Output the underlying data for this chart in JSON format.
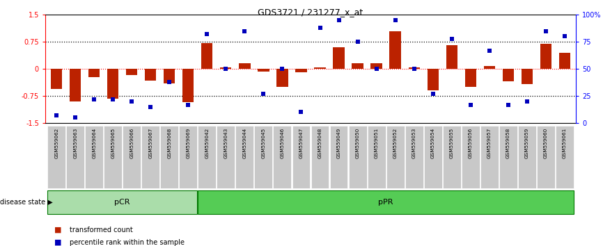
{
  "title": "GDS3721 / 231277_x_at",
  "samples": [
    "GSM559062",
    "GSM559063",
    "GSM559064",
    "GSM559065",
    "GSM559066",
    "GSM559067",
    "GSM559068",
    "GSM559069",
    "GSM559042",
    "GSM559043",
    "GSM559044",
    "GSM559045",
    "GSM559046",
    "GSM559047",
    "GSM559048",
    "GSM559049",
    "GSM559050",
    "GSM559051",
    "GSM559052",
    "GSM559053",
    "GSM559054",
    "GSM559055",
    "GSM559056",
    "GSM559057",
    "GSM559058",
    "GSM559059",
    "GSM559060",
    "GSM559061"
  ],
  "transformed_count": [
    -0.55,
    -0.9,
    -0.22,
    -0.82,
    -0.18,
    -0.32,
    -0.4,
    -0.92,
    0.72,
    0.05,
    0.15,
    -0.08,
    -0.5,
    -0.1,
    0.05,
    0.6,
    0.15,
    0.15,
    1.05,
    0.05,
    -0.6,
    0.65,
    -0.5,
    0.08,
    -0.35,
    -0.42,
    0.7,
    0.45
  ],
  "percentile_rank": [
    7,
    5,
    22,
    22,
    20,
    15,
    38,
    17,
    82,
    50,
    85,
    27,
    50,
    10,
    88,
    95,
    75,
    50,
    95,
    50,
    27,
    78,
    17,
    67,
    17,
    20,
    85,
    80
  ],
  "group_labels": [
    "pCR",
    "pPR"
  ],
  "group_ranges": [
    [
      0,
      8
    ],
    [
      8,
      28
    ]
  ],
  "group_colors": [
    "#aaddaa",
    "#55cc55"
  ],
  "ylim_left": [
    -1.5,
    1.5
  ],
  "yticks_left": [
    -1.5,
    -0.75,
    0.0,
    0.75,
    1.5
  ],
  "ytick_labels_left": [
    "-1.5",
    "-0.75",
    "0",
    "0.75",
    "1.5"
  ],
  "ytick_labels_right": [
    "0",
    "25",
    "50",
    "75",
    "100%"
  ],
  "bar_color": "#BB2200",
  "scatter_color": "#0000BB",
  "legend_bar_label": "transformed count",
  "legend_scatter_label": "percentile rank within the sample",
  "disease_state_label": "disease state",
  "background_color": "#ffffff"
}
